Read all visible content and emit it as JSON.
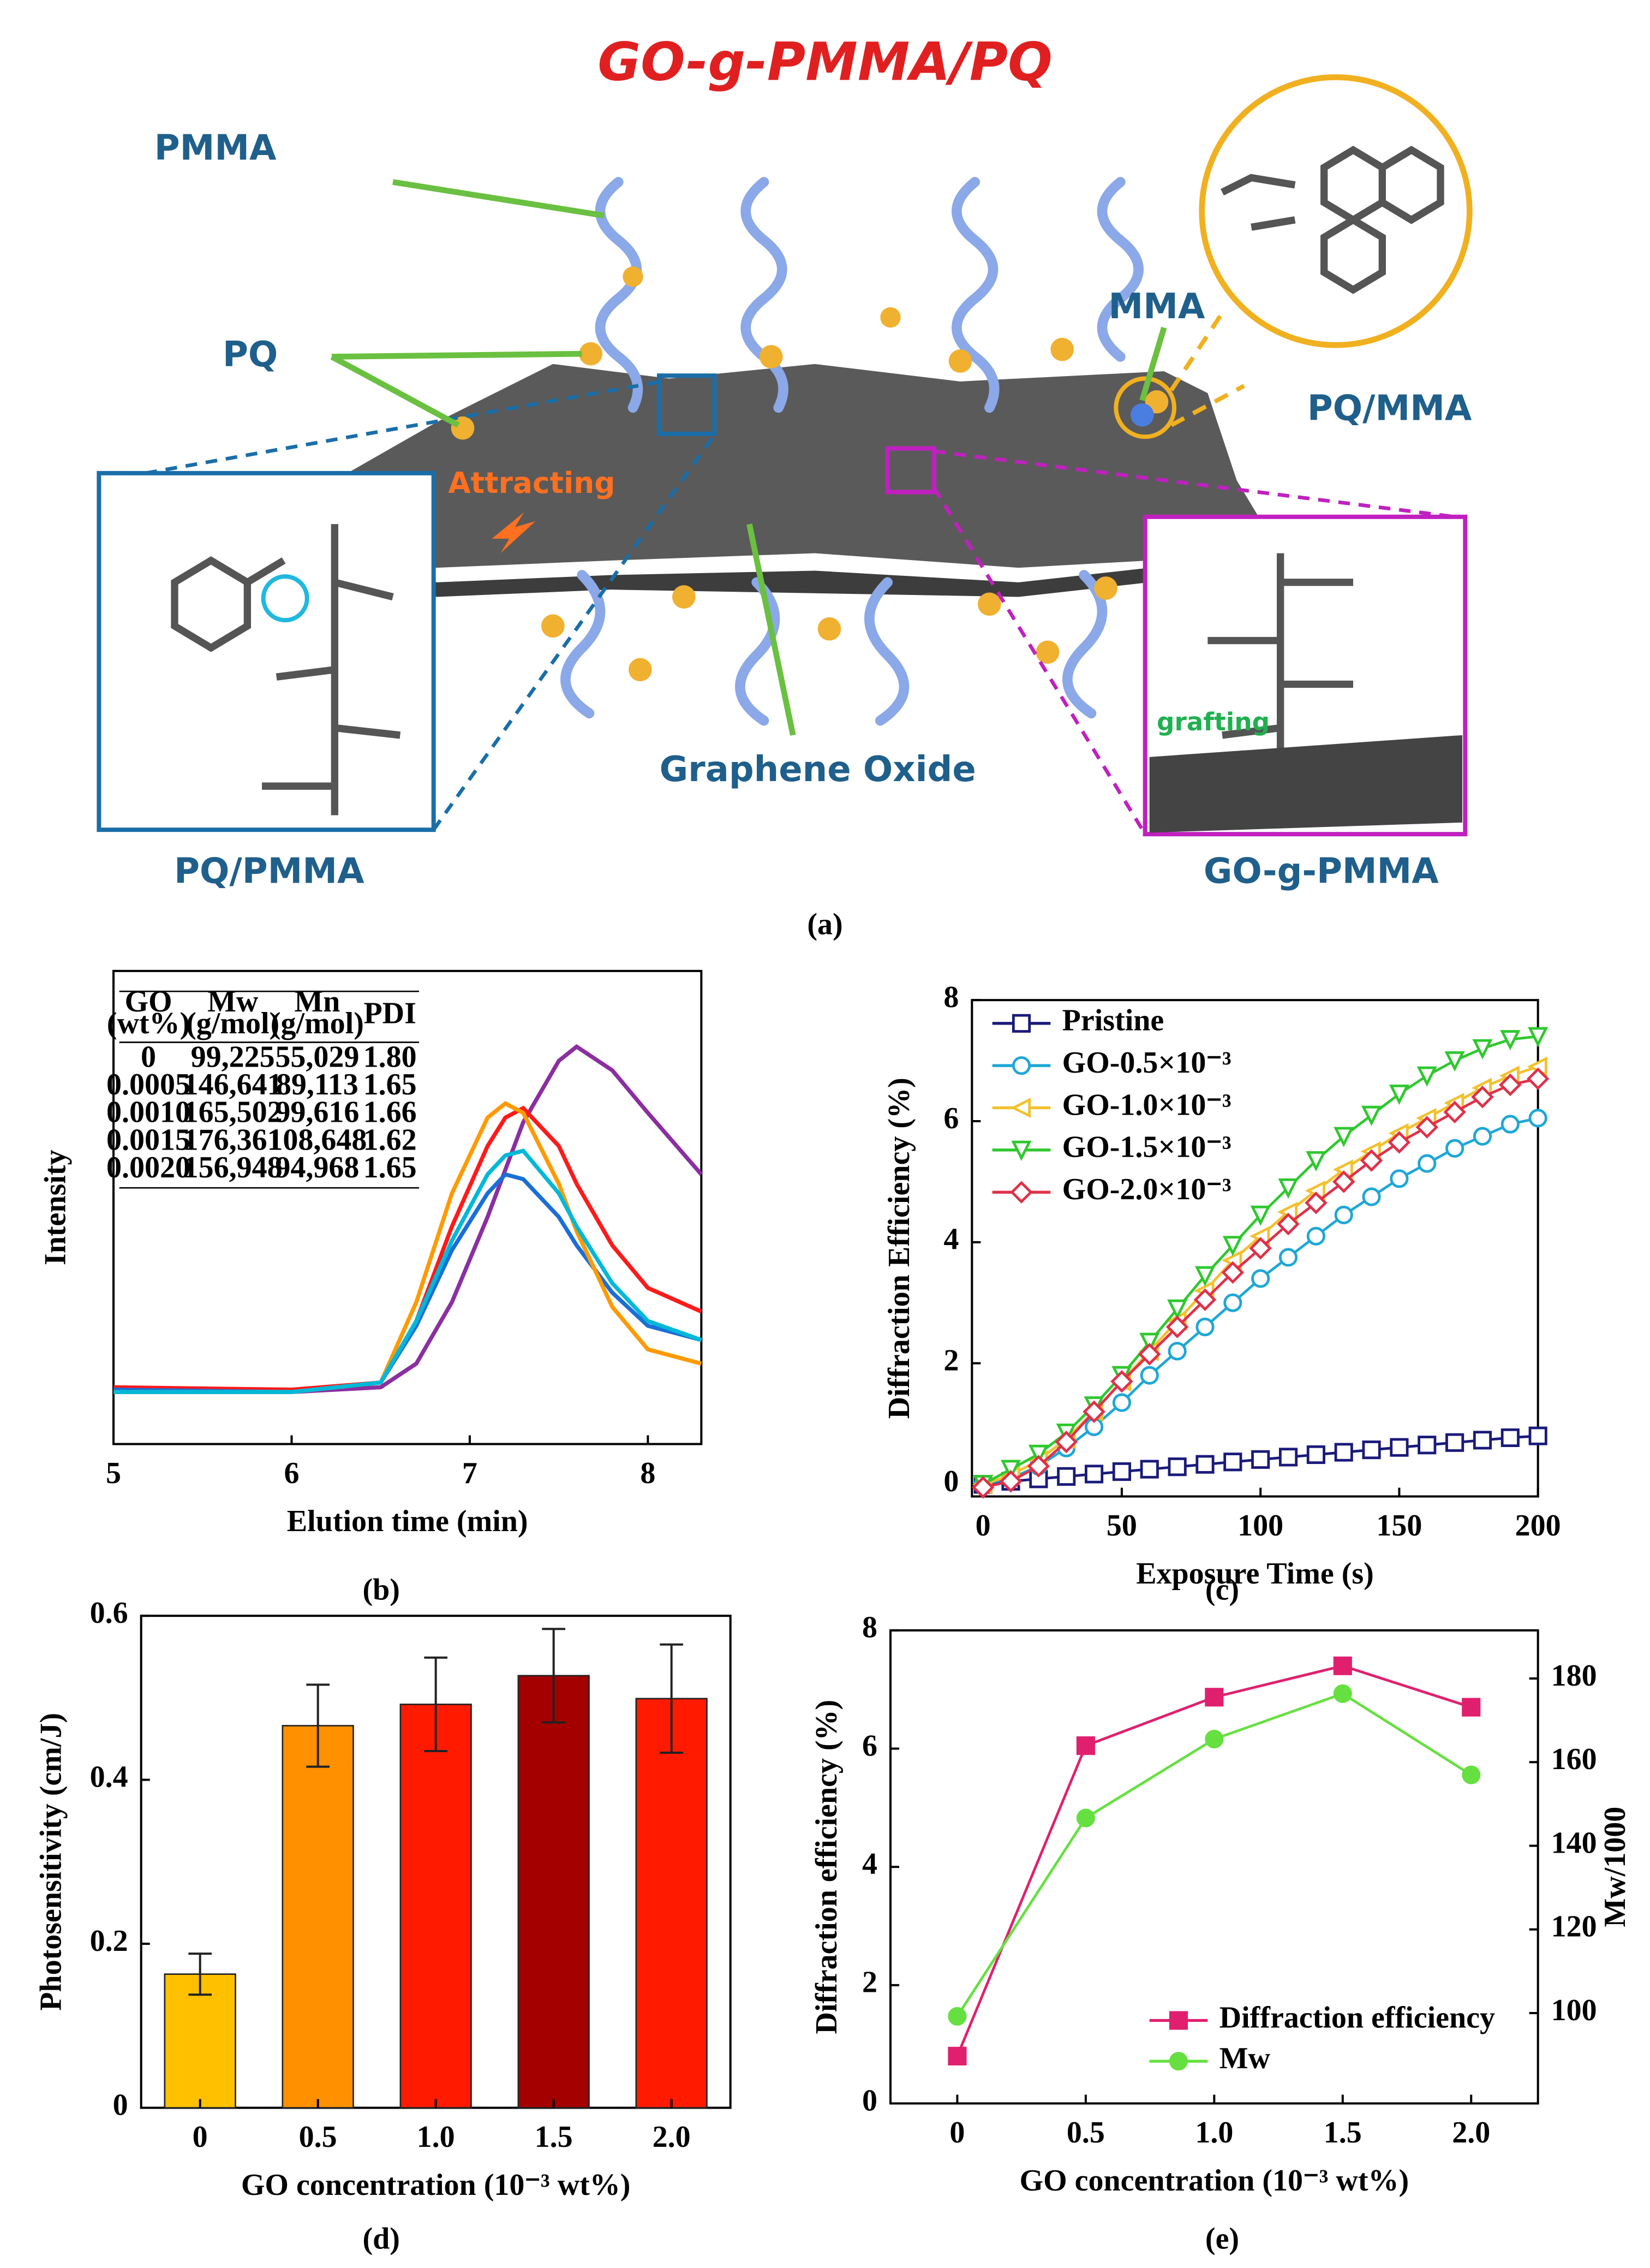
{
  "diagram": {
    "title": "GO-g-PMMA/PQ",
    "pmma": "PMMA",
    "pq": "PQ",
    "mma": "MMA",
    "pq_mma": "PQ/MMA",
    "attracting": "Attracting",
    "grafting": "grafting",
    "graphene_oxide": "Graphene Oxide",
    "pq_pmma": "PQ/PMMA",
    "go_g_pmma": "GO-g-PMMA",
    "caption": "(a)"
  },
  "chart_data": [
    {
      "type": "line",
      "caption": "(b)",
      "xlabel": "Elution time (min)",
      "ylabel": "Intensity",
      "xlim": [
        5,
        8.3
      ],
      "xticks": [
        5,
        6,
        7,
        8
      ],
      "ylim": [
        0,
        100
      ],
      "x": [
        5,
        6,
        6.5,
        6.7,
        6.9,
        7.1,
        7.2,
        7.3,
        7.5,
        7.6,
        7.8,
        8.0,
        8.3
      ],
      "series": [
        {
          "color": "#8b2fa0",
          "values": [
            11,
            11,
            12,
            17,
            30,
            48,
            58,
            68,
            81,
            84,
            79,
            70,
            57
          ]
        },
        {
          "color": "#ff1a1a",
          "values": [
            12,
            11.5,
            13,
            26,
            46,
            63,
            69,
            71,
            63,
            55,
            42,
            33,
            28
          ]
        },
        {
          "color": "#1a6ed8",
          "values": [
            11.5,
            11,
            13,
            25,
            41,
            53,
            57,
            56,
            48,
            42,
            32,
            25,
            22
          ]
        },
        {
          "color": "#ff9a00",
          "values": [
            11,
            11,
            13,
            30,
            53,
            69,
            72,
            70,
            55,
            45,
            29,
            20,
            17
          ]
        },
        {
          "color": "#00b8d8",
          "values": [
            11,
            11,
            13,
            26,
            43,
            57,
            61,
            62,
            53,
            46,
            34,
            26,
            22
          ]
        }
      ],
      "table": {
        "columns": [
          [
            "GO",
            "(wt%)"
          ],
          [
            "Mw",
            "(g/mol)"
          ],
          [
            "Mn",
            "(g/mol)"
          ],
          [
            "PDI"
          ]
        ],
        "rows": [
          [
            "0",
            "99,225",
            "55,029",
            "1.80"
          ],
          [
            "0.0005",
            "146,641",
            "89,113",
            "1.65"
          ],
          [
            "0.0010",
            "165,502",
            "99,616",
            "1.66"
          ],
          [
            "0.0015",
            "176,361",
            "108,648",
            "1.62"
          ],
          [
            "0.0020",
            "156,948",
            "94,968",
            "1.65"
          ]
        ]
      }
    },
    {
      "type": "line",
      "caption": "(c)",
      "xlabel": "Exposure Time (s)",
      "ylabel": "Diffraction Efficiency (%)",
      "xlim": [
        -4,
        200
      ],
      "xticks": [
        0,
        50,
        100,
        150,
        200
      ],
      "ylim": [
        -0.2,
        8
      ],
      "yticks": [
        0,
        2,
        4,
        6,
        8
      ],
      "x": [
        0,
        10,
        20,
        30,
        40,
        50,
        60,
        70,
        80,
        90,
        100,
        110,
        120,
        130,
        140,
        150,
        160,
        170,
        180,
        190,
        200
      ],
      "series": [
        {
          "name": "Pristine",
          "color": "#1a1a7a",
          "marker": "square",
          "values": [
            0,
            0.05,
            0.09,
            0.13,
            0.17,
            0.21,
            0.25,
            0.29,
            0.33,
            0.37,
            0.41,
            0.45,
            0.49,
            0.53,
            0.57,
            0.61,
            0.65,
            0.69,
            0.73,
            0.77,
            0.8
          ]
        },
        {
          "name": "GO-0.5×10⁻³",
          "color": "#1ea7d6",
          "marker": "circle",
          "values": [
            0,
            0.1,
            0.3,
            0.6,
            0.95,
            1.35,
            1.8,
            2.2,
            2.6,
            3.0,
            3.4,
            3.75,
            4.1,
            4.45,
            4.75,
            5.05,
            5.3,
            5.55,
            5.75,
            5.95,
            6.05
          ]
        },
        {
          "name": "GO-1.0×10⁻³",
          "color": "#f2c12e",
          "marker": "triangle-left",
          "values": [
            0,
            0.15,
            0.4,
            0.75,
            1.2,
            1.7,
            2.2,
            2.7,
            3.2,
            3.7,
            4.1,
            4.5,
            4.85,
            5.2,
            5.5,
            5.8,
            6.05,
            6.3,
            6.55,
            6.75,
            6.9
          ]
        },
        {
          "name": "GO-1.5×10⁻³",
          "color": "#2ec82e",
          "marker": "triangle-down",
          "values": [
            0,
            0.25,
            0.5,
            0.85,
            1.3,
            1.8,
            2.35,
            2.9,
            3.45,
            3.95,
            4.45,
            4.9,
            5.35,
            5.75,
            6.1,
            6.45,
            6.75,
            7.0,
            7.2,
            7.35,
            7.4
          ]
        },
        {
          "name": "GO-2.0×10⁻³",
          "color": "#e0304a",
          "marker": "diamond",
          "values": [
            -0.05,
            0.05,
            0.3,
            0.7,
            1.2,
            1.7,
            2.15,
            2.6,
            3.05,
            3.5,
            3.9,
            4.3,
            4.65,
            5.0,
            5.35,
            5.65,
            5.9,
            6.15,
            6.4,
            6.6,
            6.7
          ]
        }
      ]
    },
    {
      "type": "bar",
      "caption": "(d)",
      "xlabel": "GO concentration (10⁻³ wt%)",
      "ylabel": "Photosensitivity (cm/J)",
      "categories": [
        "0",
        "0.5",
        "1.0",
        "1.5",
        "2.0"
      ],
      "values": [
        0.163,
        0.466,
        0.492,
        0.527,
        0.499
      ],
      "errors": [
        0.025,
        0.05,
        0.057,
        0.057,
        0.066
      ],
      "colors": [
        "#ffc000",
        "#ff9000",
        "#ff1a00",
        "#a50000",
        "#ff1a00"
      ],
      "ylim": [
        0,
        0.6
      ],
      "yticks": [
        0,
        0.2,
        0.4,
        0.6
      ]
    },
    {
      "type": "line",
      "caption": "(e)",
      "xlabel": "GO  concentration (10⁻³ wt%)",
      "ylabel": "Diffraction efficiency (%)",
      "y2label": "Mw/1000",
      "xlim": [
        -0.26,
        2.26
      ],
      "xticks": [
        0,
        0.5,
        {
          "value": 1,
          "label": "1.0"
        },
        1.5,
        {
          "value": 2,
          "label": "2.0"
        }
      ],
      "ylim": [
        0,
        8
      ],
      "yticks": [
        0,
        2,
        4,
        6,
        8
      ],
      "y2lim": [
        78.4,
        191.5
      ],
      "y2ticks": [
        100,
        120,
        140,
        160,
        180
      ],
      "x": [
        0,
        0.5,
        1,
        1.5,
        2
      ],
      "series": [
        {
          "name": "Diffraction efficiency",
          "color": "#e0206e",
          "marker": "square",
          "values": [
            0.8,
            6.05,
            6.87,
            7.4,
            6.7
          ]
        },
        {
          "name": "Mw",
          "color": "#66e040",
          "marker": "circle",
          "axis": "y2",
          "values": [
            99.225,
            146.641,
            165.502,
            176.361,
            156.948
          ]
        }
      ]
    }
  ]
}
